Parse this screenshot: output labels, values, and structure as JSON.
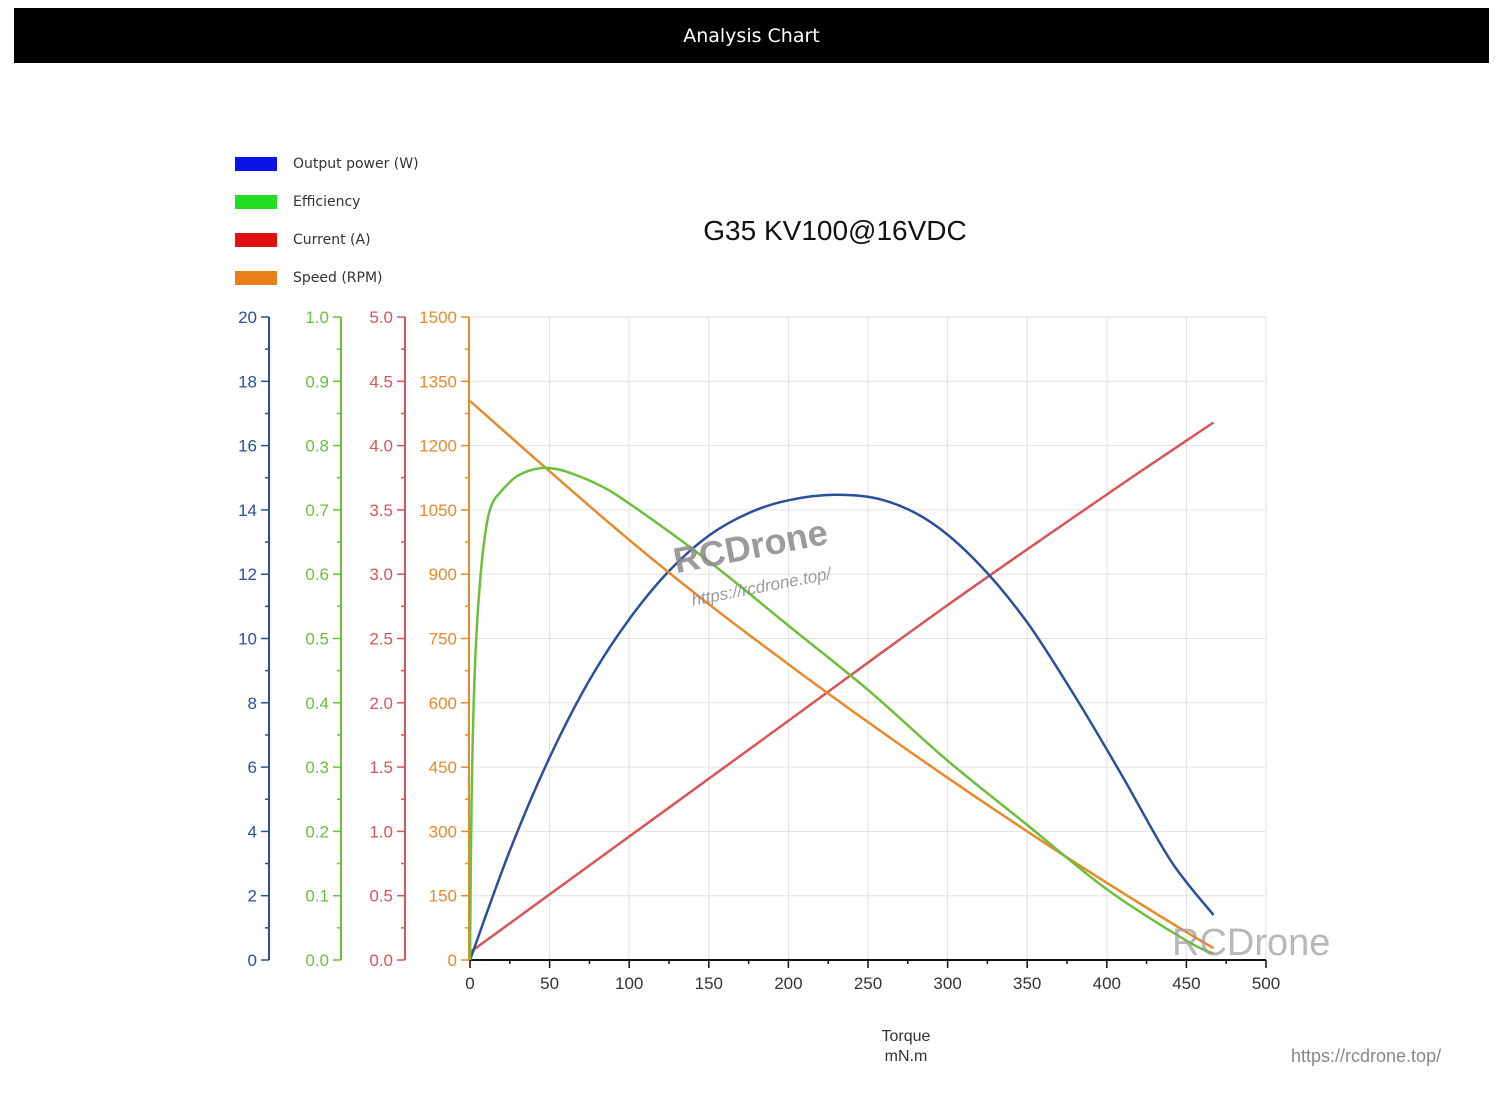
{
  "header": {
    "title": "Analysis Chart"
  },
  "footer": {
    "link_text": "https://rcdrone.top/"
  },
  "watermarks": {
    "center_brand": "RCDrone",
    "center_url": "https://rcdrone.top/",
    "corner_brand": "RCDrone"
  },
  "colors": {
    "power": "#2b4f9a",
    "efficiency": "#6cbf3b",
    "current": "#d9545a",
    "speed": "#e8892a",
    "legend_power": "#0a14e6",
    "legend_efficiency": "#22dd22",
    "legend_current": "#e01010",
    "legend_speed": "#e8801a"
  },
  "legend": [
    {
      "label": "Output power (W)",
      "color": "#0a14e6"
    },
    {
      "label": "Efficiency",
      "color": "#22dd22"
    },
    {
      "label": "Current (A)",
      "color": "#e01010"
    },
    {
      "label": "Speed (RPM)",
      "color": "#e8801a"
    }
  ],
  "chart_data": {
    "type": "line",
    "title": "G35 KV100@16VDC",
    "xlabel": "Torque",
    "xunit": "mN.m",
    "xlim": [
      0,
      500
    ],
    "x_ticks": [
      0,
      50,
      100,
      150,
      200,
      250,
      300,
      350,
      400,
      450,
      500
    ],
    "grid": true,
    "legend_position": "top-left",
    "y_axes": [
      {
        "name": "Output power (W)",
        "ylim": [
          0,
          20
        ],
        "ticks": [
          "0",
          "2",
          "4",
          "6",
          "8",
          "10",
          "12",
          "14",
          "16",
          "18",
          "20"
        ],
        "color": "#2b4f9a"
      },
      {
        "name": "Efficiency",
        "ylim": [
          0,
          1.0
        ],
        "ticks": [
          "0.0",
          "0.1",
          "0.2",
          "0.3",
          "0.4",
          "0.5",
          "0.6",
          "0.7",
          "0.8",
          "0.9",
          "1.0"
        ],
        "color": "#6cbf3b"
      },
      {
        "name": "Current (A)",
        "ylim": [
          0,
          5.0
        ],
        "ticks": [
          "0.0",
          "0.5",
          "1.0",
          "1.5",
          "2.0",
          "2.5",
          "3.0",
          "3.5",
          "4.0",
          "4.5",
          "5.0"
        ],
        "color": "#d9545a"
      },
      {
        "name": "Speed (RPM)",
        "ylim": [
          0,
          1500
        ],
        "ticks": [
          "0",
          "150",
          "300",
          "450",
          "600",
          "750",
          "900",
          "1050",
          "1200",
          "1350",
          "1500"
        ],
        "color": "#e8892a"
      }
    ],
    "series": [
      {
        "name": "Output power (W)",
        "axis": 0,
        "x": [
          0,
          25,
          50,
          75,
          100,
          125,
          150,
          175,
          200,
          230,
          260,
          290,
          320,
          350,
          380,
          410,
          440,
          467
        ],
        "y": [
          0,
          3.4,
          6.3,
          8.7,
          10.6,
          12.1,
          13.2,
          13.9,
          14.3,
          14.47,
          14.3,
          13.6,
          12.3,
          10.5,
          8.2,
          5.7,
          3.1,
          1.4
        ]
      },
      {
        "name": "Efficiency",
        "axis": 1,
        "x": [
          0,
          1,
          3,
          6,
          10,
          14,
          20,
          28,
          36,
          44,
          50,
          60,
          80,
          100,
          150,
          200,
          250,
          300,
          350,
          400,
          450,
          467
        ],
        "y": [
          0,
          0.25,
          0.45,
          0.58,
          0.67,
          0.71,
          0.73,
          0.75,
          0.76,
          0.765,
          0.765,
          0.76,
          0.74,
          0.71,
          0.62,
          0.52,
          0.42,
          0.31,
          0.21,
          0.11,
          0.03,
          0.01
        ]
      },
      {
        "name": "Current (A)",
        "axis": 2,
        "x": [
          0,
          100,
          200,
          300,
          400,
          467
        ],
        "y": [
          0.06,
          0.96,
          1.86,
          2.76,
          3.62,
          4.18
        ]
      },
      {
        "name": "Speed (RPM)",
        "axis": 3,
        "x": [
          0,
          50,
          100,
          150,
          200,
          250,
          300,
          350,
          400,
          450,
          467
        ],
        "y": [
          1304,
          1140,
          980,
          830,
          690,
          555,
          425,
          300,
          180,
          65,
          28
        ]
      }
    ]
  }
}
